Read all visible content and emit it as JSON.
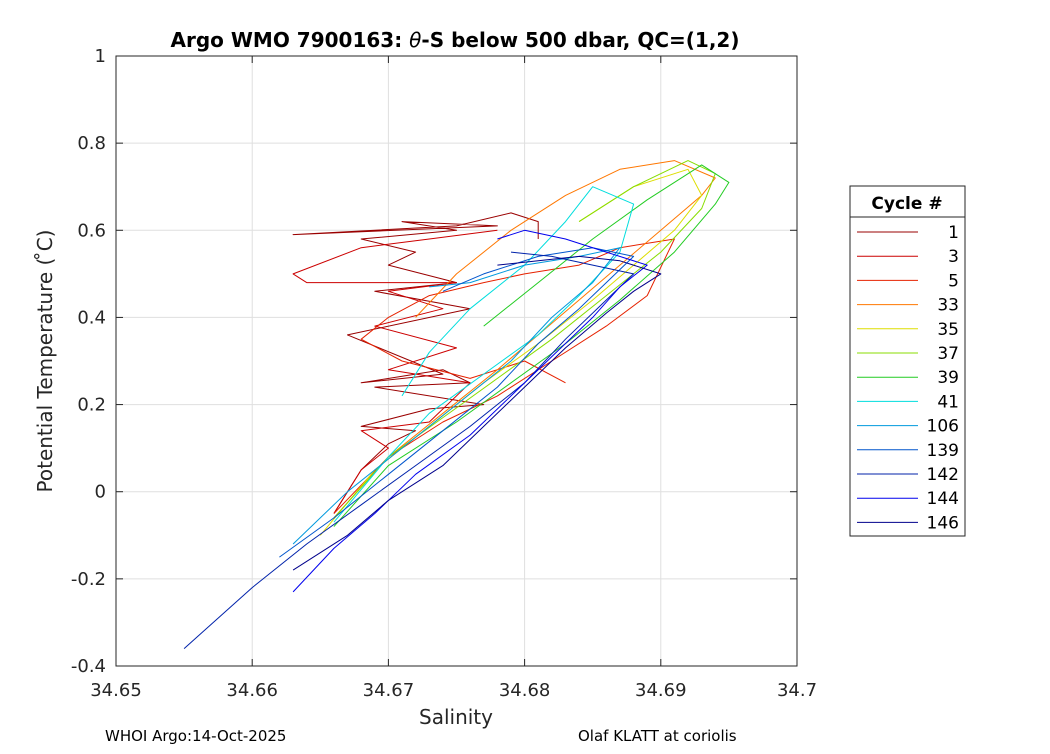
{
  "chart_data": {
    "type": "line",
    "title_prefix": "Argo WMO 7900163: ",
    "title_theta": "θ",
    "title_suffix": "-S below 500 dbar,  QC=(1,2)",
    "xlabel": "Salinity",
    "ylabel": "Potential Temperature ( ̊C)",
    "xlim": [
      34.65,
      34.7
    ],
    "ylim": [
      -0.4,
      1.0
    ],
    "xticks": [
      34.65,
      34.66,
      34.67,
      34.68,
      34.69,
      34.7
    ],
    "xtick_labels": [
      "34.65",
      "34.66",
      "34.67",
      "34.68",
      "34.69",
      "34.7"
    ],
    "yticks": [
      -0.4,
      -0.2,
      0,
      0.2,
      0.4,
      0.6,
      0.8,
      1.0
    ],
    "ytick_labels": [
      "-0.4",
      "-0.2",
      "0",
      "0.2",
      "0.4",
      "0.6",
      "0.8",
      "1"
    ],
    "grid": true,
    "legend_title": "Cycle #",
    "legend_position": "right",
    "series": [
      {
        "name": "1",
        "color": "#9a0000",
        "x": [
          34.666,
          34.668,
          34.67,
          34.672,
          34.668,
          34.673,
          34.677,
          34.669,
          34.676,
          34.674,
          34.668,
          34.674,
          34.667,
          34.676,
          34.669,
          34.675,
          34.67,
          34.672,
          34.668,
          34.675,
          34.671,
          34.678,
          34.663,
          34.675,
          34.679,
          34.681,
          34.681
        ],
        "y": [
          -0.05,
          0.05,
          0.11,
          0.14,
          0.15,
          0.19,
          0.2,
          0.24,
          0.25,
          0.28,
          0.25,
          0.27,
          0.36,
          0.42,
          0.46,
          0.48,
          0.52,
          0.55,
          0.58,
          0.6,
          0.62,
          0.61,
          0.59,
          0.61,
          0.64,
          0.62,
          0.58
        ]
      },
      {
        "name": "3",
        "color": "#cc0000",
        "x": [
          34.666,
          34.668,
          34.67,
          34.668,
          34.673,
          34.676,
          34.67,
          34.675,
          34.669,
          34.674,
          34.67,
          34.675,
          34.664,
          34.663,
          34.668,
          34.673,
          34.678
        ],
        "y": [
          -0.05,
          0.05,
          0.1,
          0.14,
          0.16,
          0.25,
          0.28,
          0.33,
          0.38,
          0.42,
          0.46,
          0.48,
          0.48,
          0.5,
          0.56,
          0.58,
          0.6
        ]
      },
      {
        "name": "5",
        "color": "#e62200",
        "x": [
          34.666,
          34.67,
          34.674,
          34.678,
          34.682,
          34.686,
          34.689,
          34.691,
          34.687,
          34.684,
          34.68,
          34.677,
          34.673,
          34.67,
          34.668,
          34.671,
          34.676,
          34.68,
          34.683
        ],
        "y": [
          -0.05,
          0.08,
          0.16,
          0.22,
          0.3,
          0.38,
          0.45,
          0.58,
          0.56,
          0.52,
          0.5,
          0.48,
          0.45,
          0.4,
          0.35,
          0.3,
          0.26,
          0.3,
          0.25
        ]
      },
      {
        "name": "33",
        "color": "#ff7700",
        "x": [
          34.666,
          34.67,
          34.674,
          34.678,
          34.681,
          34.684,
          34.687,
          34.69,
          34.693,
          34.694,
          34.691,
          34.687,
          34.683,
          34.679,
          34.675,
          34.672
        ],
        "y": [
          -0.06,
          0.08,
          0.18,
          0.28,
          0.36,
          0.44,
          0.52,
          0.6,
          0.68,
          0.72,
          0.76,
          0.74,
          0.68,
          0.6,
          0.5,
          0.4
        ]
      },
      {
        "name": "35",
        "color": "#dddd00",
        "x": [
          34.665,
          34.669,
          34.673,
          34.677,
          34.681,
          34.685,
          34.688,
          34.691,
          34.693,
          34.692,
          34.688,
          34.684
        ],
        "y": [
          -0.1,
          0.05,
          0.15,
          0.25,
          0.34,
          0.44,
          0.52,
          0.6,
          0.68,
          0.74,
          0.7,
          0.62
        ]
      },
      {
        "name": "37",
        "color": "#88dd00",
        "x": [
          34.666,
          34.67,
          34.674,
          34.678,
          34.682,
          34.686,
          34.69,
          34.693,
          34.694,
          34.692,
          34.688,
          34.684
        ],
        "y": [
          -0.06,
          0.08,
          0.17,
          0.26,
          0.35,
          0.45,
          0.55,
          0.65,
          0.73,
          0.76,
          0.7,
          0.62
        ]
      },
      {
        "name": "39",
        "color": "#22cc22",
        "x": [
          34.666,
          34.67,
          34.675,
          34.679,
          34.683,
          34.687,
          34.691,
          34.694,
          34.695,
          34.693,
          34.689,
          34.685,
          34.681,
          34.677
        ],
        "y": [
          -0.08,
          0.06,
          0.16,
          0.25,
          0.34,
          0.44,
          0.55,
          0.66,
          0.71,
          0.75,
          0.67,
          0.58,
          0.48,
          0.38
        ]
      },
      {
        "name": "41",
        "color": "#00dddd",
        "x": [
          34.666,
          34.67,
          34.673,
          34.677,
          34.681,
          34.684,
          34.687,
          34.688,
          34.685,
          34.683,
          34.68,
          34.676,
          34.673,
          34.671
        ],
        "y": [
          -0.07,
          0.08,
          0.18,
          0.27,
          0.36,
          0.45,
          0.55,
          0.66,
          0.7,
          0.62,
          0.52,
          0.42,
          0.32,
          0.22
        ]
      },
      {
        "name": "106",
        "color": "#0099dd",
        "x": [
          34.663,
          34.667,
          34.671,
          34.675,
          34.679,
          34.682,
          34.685,
          34.687,
          34.684,
          34.68,
          34.676,
          34.673
        ],
        "y": [
          -0.12,
          0.0,
          0.1,
          0.2,
          0.3,
          0.4,
          0.48,
          0.56,
          0.54,
          0.52,
          0.48,
          0.47
        ]
      },
      {
        "name": "139",
        "color": "#0055cc",
        "x": [
          34.662,
          34.666,
          34.67,
          34.674,
          34.678,
          34.681,
          34.684,
          34.686,
          34.688,
          34.685,
          34.681,
          34.677,
          34.674
        ],
        "y": [
          -0.15,
          -0.06,
          0.04,
          0.14,
          0.24,
          0.34,
          0.42,
          0.48,
          0.54,
          0.56,
          0.54,
          0.5,
          0.46
        ]
      },
      {
        "name": "142",
        "color": "#0022aa",
        "x": [
          34.655,
          34.66,
          34.664,
          34.668,
          34.672,
          34.676,
          34.68,
          34.683,
          34.686,
          34.688,
          34.685,
          34.682,
          34.679
        ],
        "y": [
          -0.36,
          -0.22,
          -0.12,
          -0.03,
          0.06,
          0.15,
          0.25,
          0.35,
          0.44,
          0.5,
          0.52,
          0.54,
          0.55
        ]
      },
      {
        "name": "144",
        "color": "#0000ee",
        "x": [
          34.663,
          34.666,
          34.669,
          34.672,
          34.676,
          34.679,
          34.682,
          34.685,
          34.687,
          34.689,
          34.686,
          34.683,
          34.68,
          34.678
        ],
        "y": [
          -0.23,
          -0.13,
          -0.05,
          0.04,
          0.13,
          0.22,
          0.31,
          0.4,
          0.47,
          0.52,
          0.55,
          0.58,
          0.6,
          0.58
        ]
      },
      {
        "name": "146",
        "color": "#00008b",
        "x": [
          34.663,
          34.667,
          34.67,
          34.674,
          34.677,
          34.68,
          34.683,
          34.686,
          34.688,
          34.69,
          34.687,
          34.684,
          34.681,
          34.678
        ],
        "y": [
          -0.18,
          -0.1,
          -0.02,
          0.06,
          0.15,
          0.24,
          0.33,
          0.41,
          0.46,
          0.5,
          0.53,
          0.54,
          0.53,
          0.52
        ]
      }
    ]
  },
  "footer": {
    "left": "WHOI Argo:14-Oct-2025",
    "right": "Olaf KLATT at coriolis"
  }
}
